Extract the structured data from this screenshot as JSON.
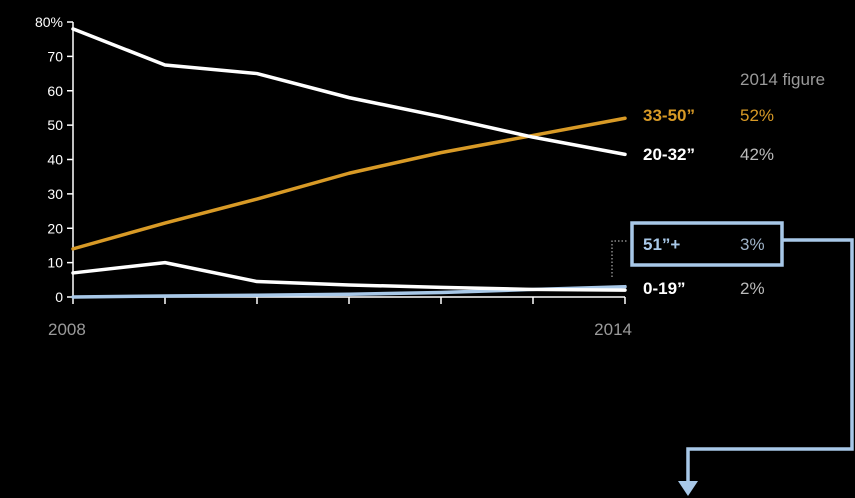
{
  "chart_data": {
    "type": "line",
    "x": [
      2008,
      2009,
      2010,
      2011,
      2012,
      2013,
      2014
    ],
    "x_tick_labels": [
      "2008",
      "2014"
    ],
    "y_tick_labels": [
      "80%",
      "70",
      "60",
      "50",
      "40",
      "30",
      "20",
      "10",
      "0"
    ],
    "ylim": [
      0,
      80
    ],
    "legend_heading": "2014 figure",
    "series": [
      {
        "name": "20-32”",
        "value_label": "42%",
        "color": "#ffffff",
        "values": [
          78,
          67.5,
          65,
          58,
          52.5,
          46.5,
          41.5
        ]
      },
      {
        "name": "33-50”",
        "value_label": "52%",
        "color": "#d89a26",
        "values": [
          14,
          21.5,
          28.5,
          36,
          42,
          47,
          52
        ]
      },
      {
        "name": "51”+",
        "value_label": "3%",
        "color": "#a8c8e8",
        "values": [
          0,
          0.3,
          0.5,
          0.8,
          1.3,
          2.2,
          3
        ]
      },
      {
        "name": "0-19”",
        "value_label": "2%",
        "color": "#ffffff",
        "values": [
          7,
          10,
          4.5,
          3.5,
          2.8,
          2.2,
          2
        ]
      }
    ],
    "highlight_series": "51”+",
    "grid": false
  }
}
